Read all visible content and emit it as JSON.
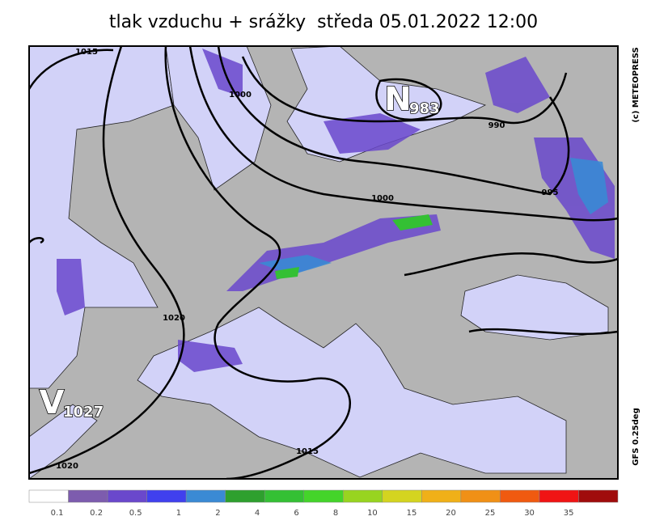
{
  "title": "tlak vzduchu + srážky  středa 05.01.2022 12:00",
  "credit": "(c) METEOPRESS",
  "model": "GFS 0.25deg",
  "isobar_labels": [
    "1015",
    "1000",
    "990",
    "1000",
    "995",
    "1020",
    "1015",
    "1020"
  ],
  "pressure_centers": [
    {
      "letter": "N",
      "value": "983"
    },
    {
      "letter": "V",
      "value": "1027"
    }
  ],
  "legend": {
    "colors": [
      "#ffffff",
      "#7d5cae",
      "#6a48cc",
      "#4040ee",
      "#3a8ad4",
      "#2ea02e",
      "#34c034",
      "#44d42a",
      "#98d420",
      "#d4d420",
      "#f0b018",
      "#f09016",
      "#f05a10",
      "#f01414",
      "#a00c0c"
    ],
    "labels": [
      "0.1",
      "0.2",
      "0.5",
      "1",
      "2",
      "4",
      "6",
      "8",
      "10",
      "15",
      "20",
      "25",
      "30",
      "35"
    ]
  }
}
